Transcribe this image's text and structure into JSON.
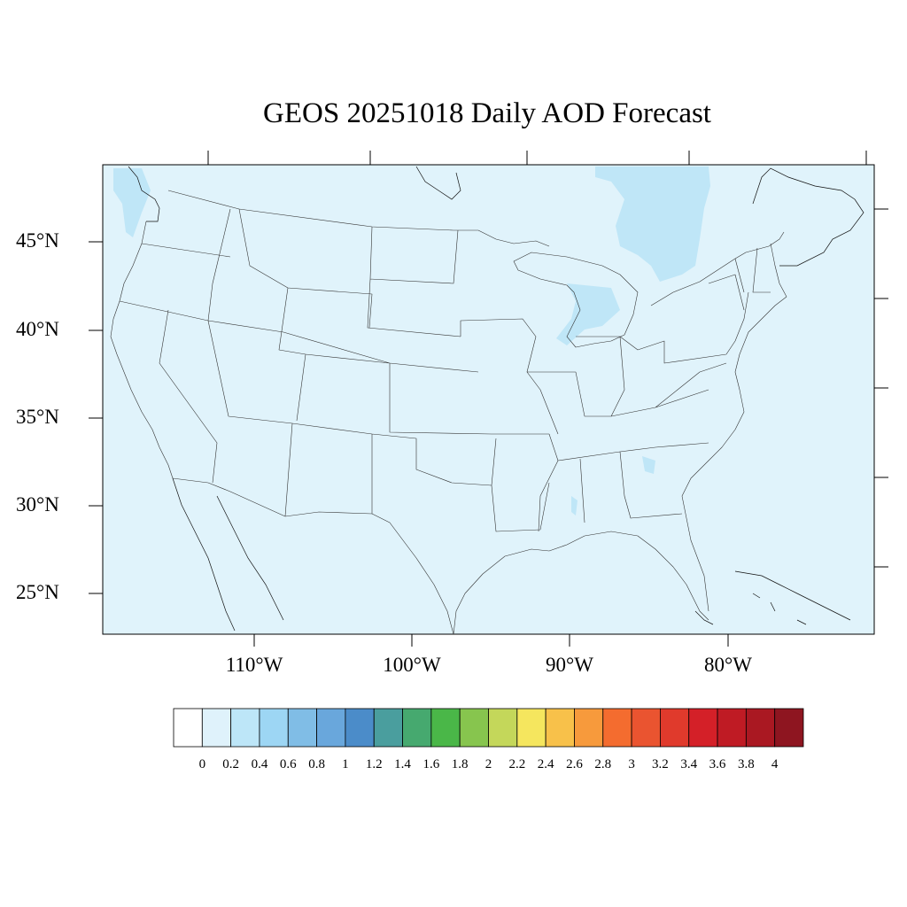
{
  "title": "GEOS 20251018 Daily AOD Forecast",
  "map": {
    "region": "Contiguous United States",
    "background_color": "#e0f3fb",
    "overlay_color": "#bfe6f7",
    "border_color": "#000000",
    "lon_labels": [
      "110°W",
      "100°W",
      "90°W",
      "80°W"
    ],
    "lat_labels": [
      "45°N",
      "40°N",
      "35°N",
      "30°N",
      "25°N"
    ]
  },
  "colorbar": {
    "colors": [
      "#ffffff",
      "#dff2fb",
      "#bde6f8",
      "#9dd6f4",
      "#80bde6",
      "#69a7dc",
      "#4b8cc9",
      "#4a9e9e",
      "#46a96f",
      "#4ab748",
      "#87c54e",
      "#c4d75a",
      "#f5e65e",
      "#f8c14a",
      "#f79a3c",
      "#f46c2f",
      "#ea5430",
      "#e03a2c",
      "#d42028",
      "#bf1b24",
      "#aa1822",
      "#8e1520"
    ],
    "labels": [
      "0",
      "0.2",
      "0.4",
      "0.6",
      "0.8",
      "1",
      "1.2",
      "1.4",
      "1.6",
      "1.8",
      "2",
      "2.2",
      "2.4",
      "2.6",
      "2.8",
      "3",
      "3.2",
      "3.4",
      "3.6",
      "3.8",
      "4"
    ]
  }
}
